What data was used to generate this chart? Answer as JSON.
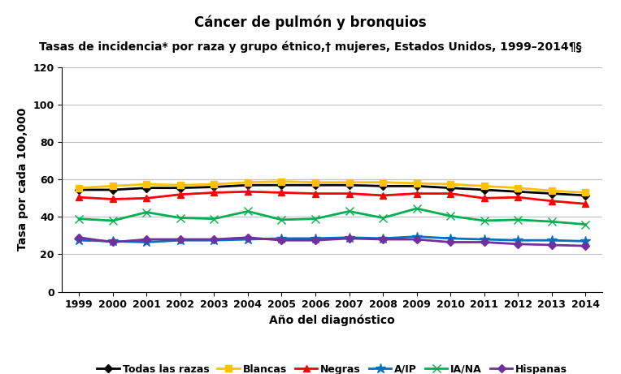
{
  "title_line1": "Cáncer de pulmón y bronquios",
  "title_line2": "Tasas de incidencia* por raza y grupo étnico,† mujeres, Estados Unidos, 1999–2014¶§",
  "xlabel": "Año del diagnóstico",
  "ylabel": "Tasa por cada 100,000",
  "years": [
    1999,
    2000,
    2001,
    2002,
    2003,
    2004,
    2005,
    2006,
    2007,
    2008,
    2009,
    2010,
    2011,
    2012,
    2013,
    2014
  ],
  "series": [
    {
      "name": "Todas las razas",
      "color": "#000000",
      "marker": "D",
      "markersize": 5,
      "values": [
        54.5,
        54.5,
        55.5,
        55.5,
        56.0,
        57.0,
        57.0,
        57.0,
        57.0,
        56.5,
        56.5,
        55.5,
        54.5,
        53.5,
        52.5,
        51.5
      ]
    },
    {
      "name": "Blancas",
      "color": "#FFC000",
      "marker": "s",
      "markersize": 6,
      "values": [
        55.5,
        56.5,
        57.5,
        57.0,
        57.5,
        58.5,
        59.0,
        58.5,
        58.5,
        58.5,
        58.0,
        57.5,
        56.5,
        55.5,
        54.0,
        53.0
      ]
    },
    {
      "name": "Negras",
      "color": "#FF0000",
      "marker": "^",
      "markersize": 6,
      "values": [
        50.5,
        49.5,
        50.0,
        52.0,
        53.0,
        53.5,
        53.0,
        52.5,
        52.5,
        51.5,
        52.5,
        52.5,
        50.0,
        50.5,
        48.5,
        47.0
      ]
    },
    {
      "name": "A/IP",
      "color": "#0070C0",
      "marker": "*",
      "markersize": 9,
      "values": [
        27.5,
        27.0,
        26.5,
        27.5,
        27.5,
        28.0,
        28.5,
        28.5,
        29.0,
        28.5,
        29.5,
        28.5,
        28.0,
        27.5,
        27.5,
        27.0
      ]
    },
    {
      "name": "IA/NA",
      "color": "#00B050",
      "marker": "x",
      "markersize": 7,
      "values": [
        39.0,
        38.0,
        42.5,
        39.5,
        39.0,
        43.0,
        38.5,
        39.0,
        43.0,
        39.5,
        44.5,
        40.5,
        38.0,
        38.5,
        37.5,
        36.0
      ]
    },
    {
      "name": "Hispanas",
      "color": "#7030A0",
      "marker": "D",
      "markersize": 5,
      "values": [
        29.0,
        26.5,
        28.0,
        28.0,
        28.0,
        29.0,
        27.5,
        27.5,
        28.5,
        28.0,
        28.0,
        26.5,
        26.5,
        25.5,
        25.0,
        24.5
      ]
    }
  ],
  "ylim": [
    0,
    120
  ],
  "yticks": [
    0,
    20,
    40,
    60,
    80,
    100,
    120
  ],
  "xlim": [
    1998.5,
    2014.5
  ],
  "background_color": "#ffffff",
  "grid_color": "#bfbfbf",
  "title_fontsize": 12,
  "subtitle_fontsize": 10,
  "axis_label_fontsize": 10,
  "tick_fontsize": 9,
  "legend_fontsize": 9,
  "linewidth": 2.0
}
